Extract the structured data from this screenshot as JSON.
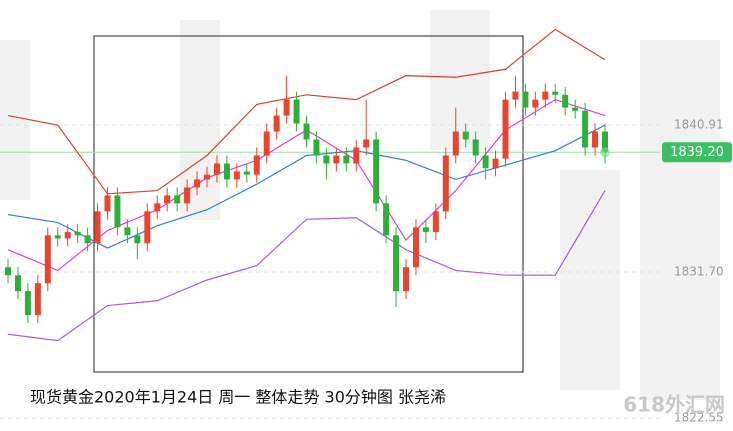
{
  "chart_data": {
    "type": "candlestick",
    "caption": "现货黄金2020年1月24日 周一   整体走势  30分钟图 张尧浠",
    "watermark": "618外汇网",
    "up_color": "#e8442e",
    "down_color": "#2fae3a",
    "open": [
      1832.0,
      1831.5,
      1830.5,
      1829.0,
      1831.0,
      1834.0,
      1833.8,
      1834.2,
      1834.0,
      1833.5,
      1835.5,
      1836.5,
      1834.5,
      1834.0,
      1833.5,
      1835.5,
      1836.0,
      1836.5,
      1836.0,
      1837.0,
      1837.5,
      1837.8,
      1838.5,
      1837.5,
      1838.0,
      1837.8,
      1839.0,
      1840.5,
      1841.5,
      1842.5,
      1841.0,
      1840.0,
      1839.0,
      1838.5,
      1839.0,
      1838.5,
      1839.5,
      1840.0,
      1836.0,
      1834.0,
      1830.5,
      1832.0,
      1834.5,
      1834.2,
      1835.5,
      1839.0,
      1840.5,
      1840.0,
      1839.0,
      1838.2,
      1838.8,
      1842.5,
      1843.0,
      1842.0,
      1842.5,
      1843.0,
      1842.8,
      1842.0,
      1841.8,
      1839.5,
      1840.5
    ],
    "high": [
      1832.5,
      1832.0,
      1831.0,
      1831.5,
      1834.5,
      1834.5,
      1834.7,
      1834.7,
      1834.5,
      1836.0,
      1837.0,
      1837.0,
      1835.0,
      1834.5,
      1836.0,
      1836.5,
      1837.0,
      1837.0,
      1837.5,
      1838.0,
      1838.3,
      1839.0,
      1839.0,
      1838.5,
      1838.5,
      1839.5,
      1841.0,
      1842.0,
      1844.0,
      1843.0,
      1841.5,
      1840.5,
      1839.5,
      1839.5,
      1839.5,
      1840.0,
      1842.5,
      1840.5,
      1836.5,
      1834.5,
      1832.5,
      1835.0,
      1835.0,
      1836.0,
      1839.5,
      1842.0,
      1841.0,
      1840.5,
      1839.5,
      1839.3,
      1843.0,
      1844.0,
      1843.5,
      1843.0,
      1843.5,
      1843.5,
      1843.3,
      1842.5,
      1842.3,
      1841.0,
      1841.0
    ],
    "low": [
      1831.0,
      1830.0,
      1828.5,
      1828.5,
      1830.5,
      1833.3,
      1833.3,
      1833.5,
      1833.0,
      1833.0,
      1835.0,
      1834.0,
      1833.5,
      1832.5,
      1833.0,
      1835.0,
      1835.5,
      1835.5,
      1835.5,
      1836.5,
      1837.0,
      1837.3,
      1837.0,
      1837.0,
      1837.3,
      1837.3,
      1838.5,
      1840.0,
      1841.0,
      1840.5,
      1839.5,
      1838.5,
      1837.5,
      1838.0,
      1838.0,
      1838.0,
      1839.0,
      1835.5,
      1833.5,
      1829.5,
      1830.0,
      1831.5,
      1833.5,
      1833.7,
      1835.0,
      1838.5,
      1839.5,
      1838.5,
      1837.5,
      1837.7,
      1838.3,
      1842.0,
      1841.5,
      1841.5,
      1842.0,
      1842.3,
      1841.5,
      1841.3,
      1839.0,
      1839.0,
      1838.5
    ],
    "close": [
      1831.5,
      1830.5,
      1829.0,
      1831.0,
      1834.0,
      1833.8,
      1834.2,
      1834.0,
      1833.5,
      1835.5,
      1836.5,
      1834.5,
      1834.0,
      1833.5,
      1835.5,
      1836.0,
      1836.5,
      1836.0,
      1837.0,
      1837.5,
      1837.8,
      1838.5,
      1837.5,
      1838.0,
      1837.8,
      1839.0,
      1840.5,
      1841.5,
      1842.5,
      1841.0,
      1840.0,
      1839.0,
      1838.5,
      1839.0,
      1838.5,
      1839.5,
      1840.0,
      1836.0,
      1834.0,
      1830.5,
      1832.0,
      1834.5,
      1834.2,
      1835.5,
      1839.0,
      1840.5,
      1840.0,
      1839.0,
      1838.2,
      1838.8,
      1842.5,
      1843.0,
      1842.0,
      1842.5,
      1843.0,
      1842.8,
      1842.0,
      1841.8,
      1839.5,
      1840.5,
      1839.2
    ],
    "overlay_x": [
      0,
      5,
      10,
      15,
      20,
      25,
      30,
      35,
      40,
      45,
      50,
      55,
      60
    ],
    "series": [
      {
        "color": "#d9412f",
        "values": [
          1841.5,
          1840.9,
          1836.6,
          1836.8,
          1839.0,
          1842.2,
          1842.8,
          1842.5,
          1844.0,
          1843.9,
          1844.4,
          1846.9,
          1845.0
        ]
      },
      {
        "color": "#2f7fd6",
        "values": [
          1835.3,
          1834.8,
          1833.2,
          1834.6,
          1835.6,
          1837.2,
          1839.0,
          1839.3,
          1838.7,
          1837.5,
          1838.4,
          1839.3,
          1840.9
        ]
      },
      {
        "color": "#a05ee0",
        "values": [
          1827.8,
          1827.4,
          1829.6,
          1829.9,
          1831.2,
          1832.1,
          1835.0,
          1835.1,
          1833.1,
          1831.8,
          1831.5,
          1831.5,
          1836.8
        ]
      },
      {
        "color": "#e43ad6",
        "values": [
          1833.1,
          1831.8,
          1834.3,
          1835.6,
          1837.6,
          1838.7,
          1840.6,
          1838.7,
          1833.7,
          1836.8,
          1840.6,
          1842.5,
          1841.5
        ]
      }
    ],
    "ylim": [
      1821.74,
      1848.74
    ],
    "yticks": [
      1822.55,
      {
        "value": 1831.7,
        "label": "1831.70"
      },
      1840.91
    ],
    "last_price": {
      "value": 1839.2,
      "label": "1839.20"
    }
  }
}
